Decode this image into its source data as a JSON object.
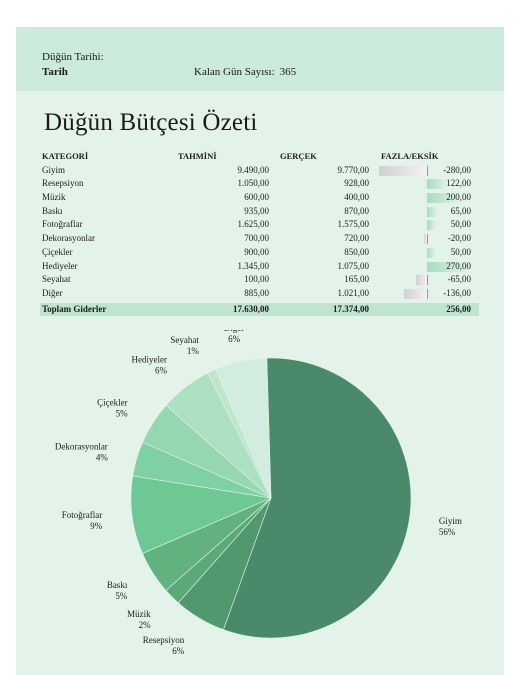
{
  "header": {
    "date_label": "Düğün Tarihi:",
    "date_value": "Tarih",
    "countdown_label": "Kalan Gün Sayısı:",
    "countdown_value": "365"
  },
  "title": "Düğün Bütçesi Özeti",
  "table": {
    "headers": {
      "category": "KATEGORİ",
      "estimated": "TAHMİNİ",
      "actual": "GERÇEK",
      "difference": "FAZLA/EKSİK"
    },
    "rows": [
      {
        "category": "Giyim",
        "estimated": "9.490,00",
        "actual": "9.770,00",
        "difference": "-280,00",
        "diff_value": -280
      },
      {
        "category": "Resepsiyon",
        "estimated": "1.050,00",
        "actual": "928,00",
        "difference": "122,00",
        "diff_value": 122
      },
      {
        "category": "Müzik",
        "estimated": "600,00",
        "actual": "400,00",
        "difference": "200,00",
        "diff_value": 200
      },
      {
        "category": "Baskı",
        "estimated": "935,00",
        "actual": "870,00",
        "difference": "65,00",
        "diff_value": 65
      },
      {
        "category": "Fotoğraflar",
        "estimated": "1.625,00",
        "actual": "1.575,00",
        "difference": "50,00",
        "diff_value": 50
      },
      {
        "category": "Dekorasyonlar",
        "estimated": "700,00",
        "actual": "720,00",
        "difference": "-20,00",
        "diff_value": -20
      },
      {
        "category": "Çiçekler",
        "estimated": "900,00",
        "actual": "850,00",
        "difference": "50,00",
        "diff_value": 50
      },
      {
        "category": "Hediyeler",
        "estimated": "1.345,00",
        "actual": "1.075,00",
        "difference": "270,00",
        "diff_value": 270
      },
      {
        "category": "Seyahat",
        "estimated": "100,00",
        "actual": "165,00",
        "difference": "-65,00",
        "diff_value": -65
      },
      {
        "category": "Diğer",
        "estimated": "885,00",
        "actual": "1.021,00",
        "difference": "-136,00",
        "diff_value": -136
      }
    ],
    "total": {
      "category": "Toplam Giderler",
      "estimated": "17.630,00",
      "actual": "17.374,00",
      "difference": "256,00"
    }
  },
  "chart_data": {
    "type": "pie",
    "slices": [
      {
        "name": "Giyim",
        "value": 56,
        "label": "56%",
        "color": "#4a8a6b"
      },
      {
        "name": "Resepsiyon",
        "value": 6,
        "label": "6%",
        "color": "#52986f"
      },
      {
        "name": "Müzik",
        "value": 2,
        "label": "2%",
        "color": "#5ca878"
      },
      {
        "name": "Baskı",
        "value": 5,
        "label": "5%",
        "color": "#62b27f"
      },
      {
        "name": "Fotoğraflar",
        "value": 9,
        "label": "9%",
        "color": "#6ec895"
      },
      {
        "name": "Dekorasyonlar",
        "value": 4,
        "label": "4%",
        "color": "#7fd0a2"
      },
      {
        "name": "Çiçekler",
        "value": 5,
        "label": "5%",
        "color": "#96d7b1"
      },
      {
        "name": "Hediyeler",
        "value": 6,
        "label": "6%",
        "color": "#addfc1"
      },
      {
        "name": "Seyahat",
        "value": 1,
        "label": "1%",
        "color": "#bfe5cf"
      },
      {
        "name": "Diğer",
        "value": 6,
        "label": "6%",
        "color": "#d2ece0"
      }
    ]
  }
}
